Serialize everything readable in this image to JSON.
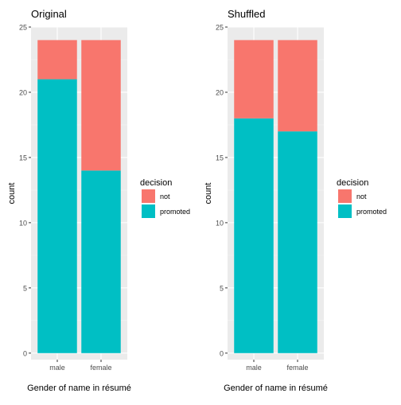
{
  "chart_data": [
    {
      "type": "bar",
      "stacked": true,
      "title": "Original",
      "xlabel": "Gender of name in résumé",
      "ylabel": "count",
      "categories": [
        "male",
        "female"
      ],
      "series": [
        {
          "name": "not",
          "values": [
            3,
            10
          ],
          "color": "#F8766D"
        },
        {
          "name": "promoted",
          "values": [
            21,
            14
          ],
          "color": "#00BFC4"
        }
      ],
      "ylim": [
        -0.5,
        25
      ],
      "yticks": [
        0,
        5,
        10,
        15,
        20,
        25
      ],
      "grid": true,
      "legend": {
        "title": "decision",
        "position": "right"
      }
    },
    {
      "type": "bar",
      "stacked": true,
      "title": "Shuffled",
      "xlabel": "Gender of name in résumé",
      "ylabel": "count",
      "categories": [
        "male",
        "female"
      ],
      "series": [
        {
          "name": "not",
          "values": [
            6,
            7
          ],
          "color": "#F8766D"
        },
        {
          "name": "promoted",
          "values": [
            18,
            17
          ],
          "color": "#00BFC4"
        }
      ],
      "ylim": [
        -0.5,
        25
      ],
      "yticks": [
        0,
        5,
        10,
        15,
        20,
        25
      ],
      "grid": true,
      "legend": {
        "title": "decision",
        "position": "right"
      }
    }
  ],
  "theme": {
    "panel_bg": "#EBEBEB",
    "grid_major": "#FFFFFF",
    "text": "#000000",
    "tick_text": "#4D4D4D",
    "tick_mark": "#333333"
  }
}
